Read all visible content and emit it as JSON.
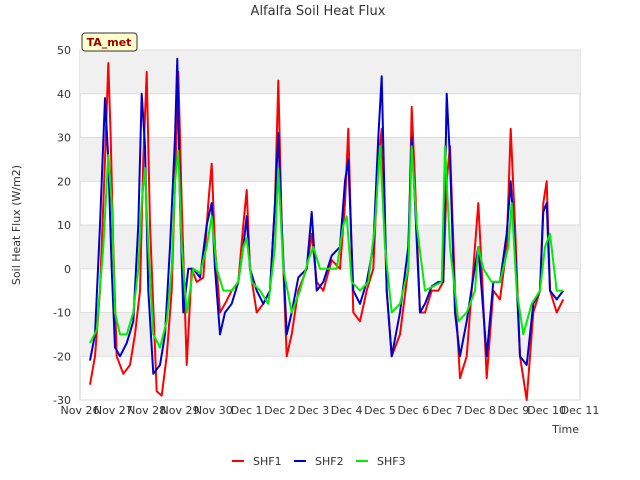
{
  "chart_data": {
    "type": "line",
    "title": "Alfalfa Soil Heat Flux",
    "xlabel": "Time",
    "ylabel": "Soil Heat Flux (W/m2)",
    "ylim": [
      -30,
      50
    ],
    "xlim": [
      0,
      15
    ],
    "yticks": [
      -30,
      -20,
      -10,
      0,
      10,
      20,
      30,
      40,
      50
    ],
    "xticks": [
      {
        "x": 0,
        "label": "Nov 26"
      },
      {
        "x": 1,
        "label": "Nov 27"
      },
      {
        "x": 2,
        "label": "Nov 28"
      },
      {
        "x": 3,
        "label": "Nov 29"
      },
      {
        "x": 4,
        "label": "Nov 30"
      },
      {
        "x": 5,
        "label": "Dec 1"
      },
      {
        "x": 6,
        "label": "Dec 2"
      },
      {
        "x": 7,
        "label": "Dec 3"
      },
      {
        "x": 8,
        "label": "Dec 4"
      },
      {
        "x": 9,
        "label": "Dec 5"
      },
      {
        "x": 10,
        "label": "Dec 6"
      },
      {
        "x": 11,
        "label": "Dec 7"
      },
      {
        "x": 12,
        "label": "Dec 8"
      },
      {
        "x": 13,
        "label": "Dec 9"
      },
      {
        "x": 14,
        "label": "Dec 10"
      },
      {
        "x": 15,
        "label": "Dec 11"
      }
    ],
    "annotation": "TA_met",
    "grid": true,
    "legend_position": "bottom-center",
    "series": [
      {
        "name": "SHF1",
        "color": "#ff0000",
        "x": [
          0.3,
          0.45,
          0.6,
          0.75,
          0.85,
          0.92,
          1.0,
          1.1,
          1.3,
          1.5,
          1.65,
          1.8,
          1.9,
          2.0,
          2.1,
          2.3,
          2.45,
          2.6,
          2.75,
          2.85,
          2.95,
          3.05,
          3.2,
          3.35,
          3.5,
          3.7,
          3.85,
          3.95,
          4.05,
          4.2,
          4.35,
          4.55,
          4.75,
          4.9,
          5.0,
          5.1,
          5.3,
          5.5,
          5.7,
          5.85,
          5.95,
          6.05,
          6.2,
          6.35,
          6.55,
          6.8,
          6.95,
          7.1,
          7.3,
          7.55,
          7.8,
          7.95,
          8.05,
          8.2,
          8.4,
          8.6,
          8.8,
          8.95,
          9.05,
          9.2,
          9.35,
          9.6,
          9.85,
          9.95,
          10.05,
          10.2,
          10.35,
          10.55,
          10.75,
          10.9,
          11.0,
          11.1,
          11.25,
          11.4,
          11.6,
          11.8,
          11.95,
          12.05,
          12.2,
          12.4,
          12.6,
          12.8,
          12.92,
          13.05,
          13.2,
          13.4,
          13.6,
          13.8,
          13.9,
          14.0,
          14.1,
          14.3,
          14.5
        ],
        "values": [
          -26.5,
          -20,
          -5,
          25,
          47,
          30,
          5,
          -20,
          -24,
          -22,
          -15,
          -5,
          25,
          45,
          10,
          -28,
          -29,
          -20,
          -5,
          20,
          45,
          15,
          -22,
          0,
          -3,
          -2,
          15,
          24,
          5,
          -10,
          -8,
          -5,
          -3,
          10,
          18,
          0,
          -10,
          -8,
          -5,
          15,
          43,
          10,
          -20,
          -15,
          -5,
          0,
          8,
          -3,
          -5,
          2,
          0,
          15,
          32,
          -10,
          -12,
          -5,
          0,
          25,
          32,
          -5,
          -20,
          -15,
          0,
          37,
          20,
          -10,
          -10,
          -5,
          -5,
          -3,
          20,
          28,
          -5,
          -25,
          -20,
          0,
          15,
          0,
          -25,
          -5,
          -7,
          5,
          32,
          10,
          -20,
          -30,
          -10,
          -5,
          15,
          20,
          -5,
          -10,
          -7
        ]
      },
      {
        "name": "SHF2",
        "color": "#0000cc",
        "x": [
          0.3,
          0.45,
          0.6,
          0.75,
          0.85,
          0.95,
          1.05,
          1.2,
          1.4,
          1.6,
          1.75,
          1.85,
          1.95,
          2.05,
          2.2,
          2.4,
          2.55,
          2.7,
          2.85,
          2.92,
          3.0,
          3.1,
          3.25,
          3.4,
          3.6,
          3.8,
          3.95,
          4.05,
          4.2,
          4.35,
          4.55,
          4.75,
          4.9,
          5.0,
          5.1,
          5.3,
          5.5,
          5.7,
          5.85,
          5.95,
          6.05,
          6.2,
          6.35,
          6.55,
          6.8,
          6.95,
          7.1,
          7.3,
          7.55,
          7.8,
          7.95,
          8.05,
          8.2,
          8.4,
          8.6,
          8.8,
          8.95,
          9.05,
          9.2,
          9.35,
          9.6,
          9.85,
          9.95,
          10.05,
          10.2,
          10.35,
          10.55,
          10.75,
          10.9,
          11.0,
          11.1,
          11.25,
          11.4,
          11.6,
          11.8,
          11.95,
          12.05,
          12.2,
          12.4,
          12.6,
          12.8,
          12.92,
          13.05,
          13.2,
          13.4,
          13.6,
          13.8,
          13.9,
          14.0,
          14.1,
          14.3,
          14.5
        ],
        "values": [
          -21,
          -15,
          10,
          39,
          25,
          0,
          -18,
          -20,
          -17,
          -12,
          10,
          40,
          28,
          -5,
          -24,
          -22,
          -15,
          5,
          30,
          48,
          15,
          -10,
          0,
          0,
          -2,
          10,
          15,
          0,
          -15,
          -10,
          -8,
          -3,
          5,
          12,
          0,
          -5,
          -8,
          -5,
          15,
          31,
          10,
          -15,
          -10,
          -2,
          0,
          13,
          -5,
          -3,
          3,
          5,
          20,
          25,
          -5,
          -8,
          -3,
          5,
          30,
          44,
          -5,
          -20,
          -10,
          5,
          30,
          15,
          -10,
          -8,
          -4,
          -3,
          -3,
          40,
          25,
          -10,
          -20,
          -12,
          -2,
          5,
          -5,
          -20,
          -3,
          -3,
          8,
          20,
          5,
          -20,
          -22,
          -8,
          -5,
          13,
          15,
          -5,
          -7,
          -5
        ]
      },
      {
        "name": "SHF3",
        "color": "#00ee00",
        "x": [
          0.3,
          0.5,
          0.7,
          0.85,
          0.95,
          1.05,
          1.2,
          1.4,
          1.6,
          1.75,
          1.85,
          1.95,
          2.05,
          2.2,
          2.4,
          2.6,
          2.75,
          2.85,
          2.95,
          3.05,
          3.2,
          3.4,
          3.6,
          3.8,
          3.95,
          4.1,
          4.3,
          4.55,
          4.75,
          4.9,
          5.0,
          5.15,
          5.4,
          5.65,
          5.85,
          5.95,
          6.1,
          6.35,
          6.6,
          6.85,
          7.0,
          7.2,
          7.45,
          7.7,
          7.9,
          8.0,
          8.15,
          8.4,
          8.65,
          8.85,
          9.0,
          9.15,
          9.35,
          9.6,
          9.85,
          9.95,
          10.1,
          10.35,
          10.6,
          10.85,
          10.95,
          11.1,
          11.35,
          11.6,
          11.85,
          11.95,
          12.1,
          12.35,
          12.6,
          12.85,
          12.95,
          13.1,
          13.3,
          13.55,
          13.8,
          13.95,
          14.1,
          14.3,
          14.5
        ],
        "values": [
          -17,
          -14,
          5,
          26,
          15,
          -10,
          -15,
          -15,
          -10,
          0,
          15,
          23,
          5,
          -15,
          -18,
          -12,
          0,
          20,
          27,
          5,
          -10,
          0,
          -1,
          5,
          12,
          0,
          -5,
          -5,
          -3,
          5,
          7,
          -3,
          -5,
          -8,
          5,
          23,
          0,
          -10,
          -5,
          2,
          5,
          0,
          0,
          0,
          10,
          12,
          -3,
          -5,
          -3,
          10,
          28,
          5,
          -10,
          -8,
          0,
          28,
          10,
          -5,
          -4,
          -3,
          28,
          5,
          -12,
          -10,
          -5,
          5,
          0,
          -3,
          -3,
          5,
          15,
          -5,
          -15,
          -8,
          -5,
          5,
          8,
          -5,
          -5
        ]
      }
    ]
  }
}
